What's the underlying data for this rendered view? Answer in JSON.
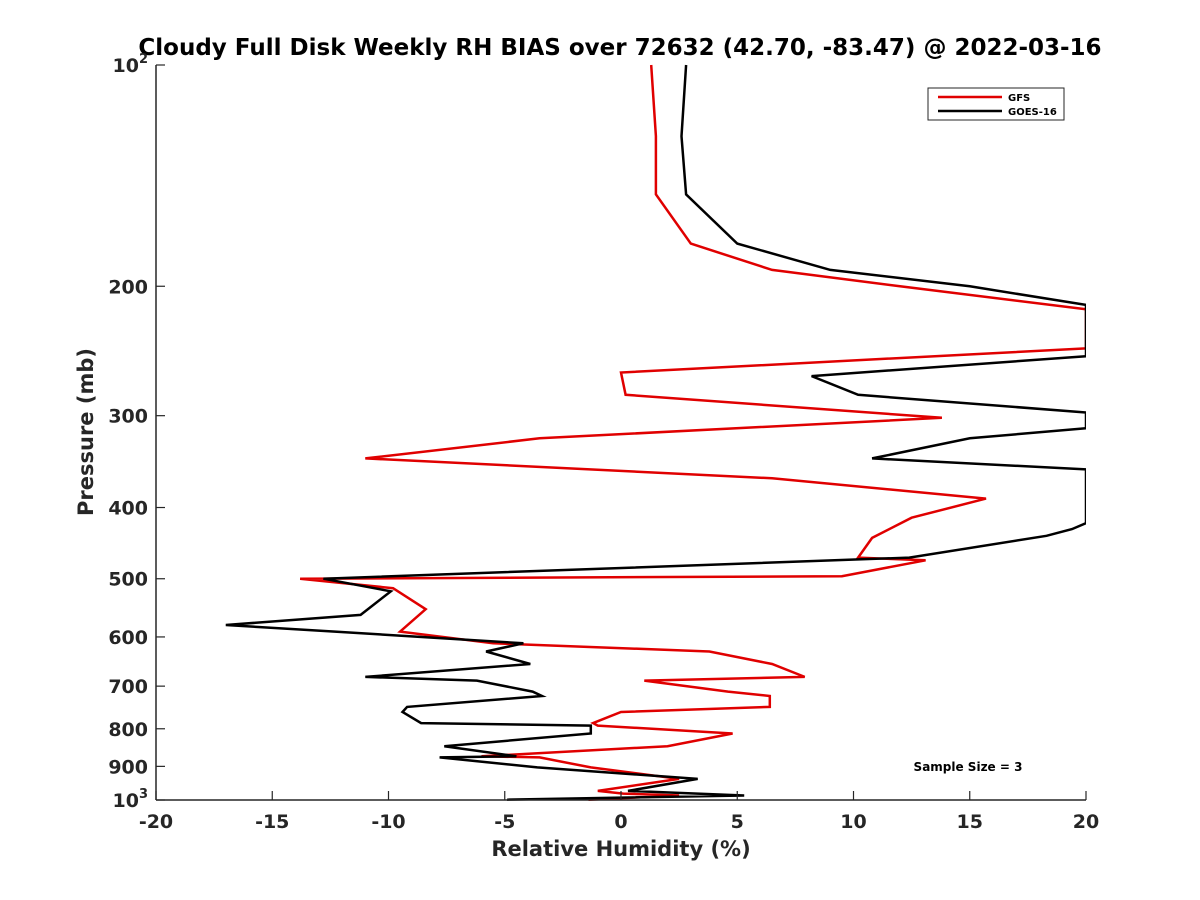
{
  "chart_data": {
    "type": "line",
    "title": "Cloudy Full Disk Weekly RH BIAS over 72632 (42.70, -83.47) @ 2022-03-16",
    "xlabel": "Relative Humidity (%)",
    "ylabel": "Pressure (mb)",
    "xlim": [
      -20,
      20
    ],
    "ylim": [
      100,
      1000
    ],
    "yscale": "log",
    "y_reversed": true,
    "grid": false,
    "legend_position": "top-right",
    "x_ticks": [
      {
        "value": -20,
        "label": "-20"
      },
      {
        "value": -15,
        "label": "-15"
      },
      {
        "value": -10,
        "label": "-10"
      },
      {
        "value": -5,
        "label": "-5"
      },
      {
        "value": 0,
        "label": "0"
      },
      {
        "value": 5,
        "label": "5"
      },
      {
        "value": 10,
        "label": "10"
      },
      {
        "value": 15,
        "label": "15"
      },
      {
        "value": 20,
        "label": "20"
      }
    ],
    "y_ticks": [
      {
        "value": 100,
        "base": "10",
        "exp": "2"
      },
      {
        "value": 200,
        "base": "200",
        "exp": ""
      },
      {
        "value": 300,
        "base": "300",
        "exp": ""
      },
      {
        "value": 400,
        "base": "400",
        "exp": ""
      },
      {
        "value": 500,
        "base": "500",
        "exp": ""
      },
      {
        "value": 600,
        "base": "600",
        "exp": ""
      },
      {
        "value": 700,
        "base": "700",
        "exp": ""
      },
      {
        "value": 800,
        "base": "800",
        "exp": ""
      },
      {
        "value": 900,
        "base": "900",
        "exp": ""
      },
      {
        "value": 1000,
        "base": "10",
        "exp": "3"
      }
    ],
    "annotation": "Sample Size = 3",
    "series": [
      {
        "name": "GFS",
        "color": "#e00000",
        "points": [
          [
            1.3,
            100
          ],
          [
            1.5,
            125
          ],
          [
            1.5,
            150
          ],
          [
            3.0,
            175
          ],
          [
            6.5,
            190
          ],
          [
            12.0,
            200
          ],
          [
            20,
            215
          ],
          [
            20,
            243
          ],
          [
            0.0,
            262
          ],
          [
            0.2,
            281
          ],
          [
            13.8,
            302
          ],
          [
            -3.5,
            322
          ],
          [
            -11.0,
            343
          ],
          [
            6.5,
            365
          ],
          [
            15.7,
            389
          ],
          [
            12.5,
            413
          ],
          [
            10.8,
            440
          ],
          [
            10.2,
            468
          ],
          [
            13.1,
            472
          ],
          [
            9.5,
            496
          ],
          [
            -13.8,
            500
          ],
          [
            -9.8,
            515
          ],
          [
            -8.4,
            550
          ],
          [
            -9.5,
            590
          ],
          [
            -5.5,
            612
          ],
          [
            3.8,
            628
          ],
          [
            6.5,
            653
          ],
          [
            7.9,
            680
          ],
          [
            1.0,
            688
          ],
          [
            4.6,
            712
          ],
          [
            6.4,
            722
          ],
          [
            6.4,
            747
          ],
          [
            0.0,
            759
          ],
          [
            -1.2,
            786
          ],
          [
            -1.0,
            792
          ],
          [
            4.8,
            812
          ],
          [
            2.0,
            845
          ],
          [
            -6.0,
            872
          ],
          [
            -3.5,
            875
          ],
          [
            -1.3,
            903
          ],
          [
            2.5,
            936
          ],
          [
            -1.0,
            972
          ],
          [
            0.1,
            980
          ],
          [
            2.5,
            986
          ],
          [
            -1.4,
            999
          ]
        ]
      },
      {
        "name": "GOES-16",
        "color": "#000000",
        "points": [
          [
            2.8,
            100
          ],
          [
            2.6,
            125
          ],
          [
            2.8,
            150
          ],
          [
            5.0,
            175
          ],
          [
            9.0,
            190
          ],
          [
            15.0,
            200
          ],
          [
            20,
            212
          ],
          [
            20,
            249
          ],
          [
            8.2,
            265
          ],
          [
            10.2,
            281
          ],
          [
            20,
            297
          ],
          [
            20,
            312
          ],
          [
            15.0,
            322
          ],
          [
            10.8,
            343
          ],
          [
            20,
            355
          ],
          [
            20,
            420
          ],
          [
            19.4,
            428
          ],
          [
            18.3,
            437
          ],
          [
            12.4,
            468
          ],
          [
            -12.8,
            500
          ],
          [
            -9.9,
            520
          ],
          [
            -11.2,
            560
          ],
          [
            -17.0,
            578
          ],
          [
            -12.3,
            590
          ],
          [
            -4.2,
            612
          ],
          [
            -5.8,
            628
          ],
          [
            -3.9,
            653
          ],
          [
            -11.0,
            680
          ],
          [
            -6.2,
            688
          ],
          [
            -3.8,
            712
          ],
          [
            -3.4,
            722
          ],
          [
            -9.2,
            747
          ],
          [
            -9.4,
            759
          ],
          [
            -8.6,
            786
          ],
          [
            -1.3,
            792
          ],
          [
            -1.3,
            812
          ],
          [
            -7.6,
            845
          ],
          [
            -4.5,
            872
          ],
          [
            -7.8,
            875
          ],
          [
            -3.6,
            903
          ],
          [
            3.3,
            936
          ],
          [
            0.3,
            972
          ],
          [
            5.3,
            986
          ],
          [
            -4.9,
            999
          ]
        ]
      }
    ]
  }
}
